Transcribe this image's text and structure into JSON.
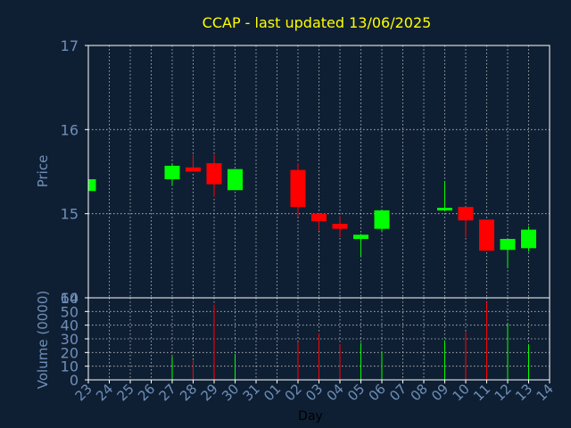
{
  "chart_data": {
    "type": "candlestick",
    "title": "CCAP - last updated 13/06/2025",
    "xlabel": "Day",
    "colors": {
      "background": "#0f1f33",
      "plot_border": "#ffffff",
      "grid": "#ffffff",
      "axis_text": "#6f8fb8",
      "title": "#ffff00",
      "xlabel": "#000000",
      "up": "#00ff00",
      "down": "#ff0000"
    },
    "grid": true,
    "days": [
      "23",
      "24",
      "25",
      "26",
      "27",
      "28",
      "29",
      "30",
      "31",
      "01",
      "02",
      "03",
      "04",
      "05",
      "06",
      "07",
      "08",
      "09",
      "10",
      "11",
      "12",
      "13",
      "14"
    ],
    "price_panel": {
      "ylabel": "Price",
      "ylim": [
        14,
        17
      ],
      "yticks": [
        14,
        15,
        16,
        17
      ],
      "candles": [
        {
          "day": "23",
          "open": 15.27,
          "close": 15.41,
          "high": 15.41,
          "low": 15.27
        },
        {
          "day": "27",
          "open": 15.41,
          "close": 15.57,
          "high": 15.6,
          "low": 15.33
        },
        {
          "day": "28",
          "open": 15.55,
          "close": 15.5,
          "high": 15.7,
          "low": 15.5
        },
        {
          "day": "29",
          "open": 15.6,
          "close": 15.35,
          "high": 15.7,
          "low": 15.2
        },
        {
          "day": "30",
          "open": 15.28,
          "close": 15.53,
          "high": 15.53,
          "low": 15.28
        },
        {
          "day": "02",
          "open": 15.52,
          "close": 15.08,
          "high": 15.6,
          "low": 14.97
        },
        {
          "day": "03",
          "open": 15.0,
          "close": 14.91,
          "high": 15.0,
          "low": 14.8
        },
        {
          "day": "04",
          "open": 14.88,
          "close": 14.82,
          "high": 14.97,
          "low": 14.72
        },
        {
          "day": "05",
          "open": 14.7,
          "close": 14.75,
          "high": 14.76,
          "low": 14.49
        },
        {
          "day": "06",
          "open": 14.82,
          "close": 15.04,
          "high": 15.04,
          "low": 14.79
        },
        {
          "day": "09",
          "open": 15.05,
          "close": 15.07,
          "high": 15.38,
          "low": 15.03
        },
        {
          "day": "10",
          "open": 15.08,
          "close": 14.92,
          "high": 15.08,
          "low": 14.72
        },
        {
          "day": "11",
          "open": 14.93,
          "close": 14.56,
          "high": 14.93,
          "low": 14.56
        },
        {
          "day": "12",
          "open": 14.57,
          "close": 14.7,
          "high": 14.7,
          "low": 14.35
        },
        {
          "day": "13",
          "open": 14.59,
          "close": 14.81,
          "high": 14.85,
          "low": 14.55
        }
      ]
    },
    "volume_panel": {
      "ylabel": "Volume (0000)",
      "ylim": [
        0,
        60
      ],
      "yticks": [
        0,
        10,
        20,
        30,
        40,
        50,
        60
      ],
      "volumes": [
        {
          "day": "27",
          "value": 17,
          "direction": "up"
        },
        {
          "day": "28",
          "value": 14,
          "direction": "down"
        },
        {
          "day": "29",
          "value": 55,
          "direction": "down"
        },
        {
          "day": "30",
          "value": 19,
          "direction": "up"
        },
        {
          "day": "02",
          "value": 28,
          "direction": "down"
        },
        {
          "day": "03",
          "value": 34,
          "direction": "down"
        },
        {
          "day": "04",
          "value": 26,
          "direction": "down"
        },
        {
          "day": "05",
          "value": 27,
          "direction": "up"
        },
        {
          "day": "06",
          "value": 21,
          "direction": "up"
        },
        {
          "day": "09",
          "value": 29,
          "direction": "up"
        },
        {
          "day": "10",
          "value": 35,
          "direction": "down"
        },
        {
          "day": "11",
          "value": 57,
          "direction": "down"
        },
        {
          "day": "12",
          "value": 41,
          "direction": "up"
        },
        {
          "day": "13",
          "value": 26,
          "direction": "up"
        }
      ]
    }
  }
}
